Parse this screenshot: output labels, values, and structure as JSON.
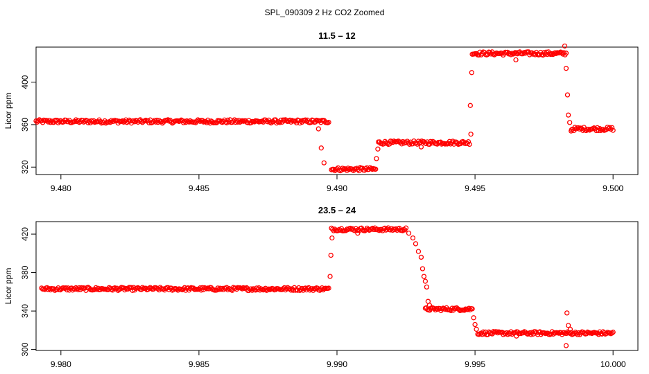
{
  "figure_title": "SPL_090309  2 Hz CO2 Zoomed",
  "chart_data": [
    {
      "type": "scatter",
      "title": "11.5 – 12",
      "xlabel": "",
      "ylabel": "Licor ppm",
      "xlim": [
        9.4791,
        9.5009
      ],
      "ylim": [
        313,
        433
      ],
      "x_ticks": [
        9.48,
        9.485,
        9.49,
        9.495,
        9.5
      ],
      "x_tick_labels": [
        "9.480",
        "9.485",
        "9.490",
        "9.495",
        "9.500"
      ],
      "y_ticks": [
        320,
        360,
        400
      ],
      "y_tick_labels": [
        "320",
        "360",
        "400"
      ],
      "grid": false,
      "marker": "open-circle",
      "color": "#ff0000",
      "segments": [
        {
          "x_start": 9.4791,
          "x_end": 9.4897,
          "y": 363
        },
        {
          "x_start": 9.4898,
          "x_end": 9.4914,
          "y": 318
        },
        {
          "x_start": 9.4915,
          "x_end": 9.4948,
          "y": 343
        },
        {
          "x_start": 9.4949,
          "x_end": 9.4983,
          "y": 427
        },
        {
          "x_start": 9.4985,
          "x_end": 9.5,
          "y": 356
        }
      ],
      "points": [
        {
          "x": 9.48933,
          "y": 356
        },
        {
          "x": 9.48943,
          "y": 338
        },
        {
          "x": 9.48953,
          "y": 324
        },
        {
          "x": 9.49143,
          "y": 328
        },
        {
          "x": 9.49148,
          "y": 337
        },
        {
          "x": 9.49305,
          "y": 339
        },
        {
          "x": 9.49485,
          "y": 351
        },
        {
          "x": 9.49483,
          "y": 378
        },
        {
          "x": 9.49488,
          "y": 409
        },
        {
          "x": 9.49648,
          "y": 421
        },
        {
          "x": 9.49825,
          "y": 434
        },
        {
          "x": 9.4983,
          "y": 413
        },
        {
          "x": 9.49835,
          "y": 388
        },
        {
          "x": 9.49838,
          "y": 369
        },
        {
          "x": 9.49843,
          "y": 362
        },
        {
          "x": 9.49848,
          "y": 354
        }
      ]
    },
    {
      "type": "scatter",
      "title": "23.5 – 24",
      "xlabel": "",
      "ylabel": "Licor ppm",
      "xlim": [
        9.9791,
        10.0009
      ],
      "ylim": [
        299,
        433
      ],
      "x_ticks": [
        9.98,
        9.985,
        9.99,
        9.995,
        10.0
      ],
      "x_tick_labels": [
        "9.980",
        "9.985",
        "9.990",
        "9.995",
        "10.000"
      ],
      "y_ticks": [
        300,
        340,
        380,
        420
      ],
      "y_tick_labels": [
        "300",
        "340",
        "380",
        "420"
      ],
      "grid": false,
      "marker": "open-circle",
      "color": "#ff0000",
      "segments": [
        {
          "x_start": 9.9793,
          "x_end": 9.9897,
          "y": 363
        },
        {
          "x_start": 9.9898,
          "x_end": 9.9925,
          "y": 425
        },
        {
          "x_start": 9.9932,
          "x_end": 9.9949,
          "y": 342
        },
        {
          "x_start": 9.9951,
          "x_end": 10.0,
          "y": 317
        }
      ],
      "points": [
        {
          "x": 9.98975,
          "y": 376
        },
        {
          "x": 9.98978,
          "y": 398
        },
        {
          "x": 9.98982,
          "y": 416
        },
        {
          "x": 9.99075,
          "y": 421
        },
        {
          "x": 9.9926,
          "y": 421
        },
        {
          "x": 9.99275,
          "y": 416
        },
        {
          "x": 9.99285,
          "y": 410
        },
        {
          "x": 9.99295,
          "y": 402
        },
        {
          "x": 9.99305,
          "y": 396
        },
        {
          "x": 9.9931,
          "y": 384
        },
        {
          "x": 9.99315,
          "y": 376
        },
        {
          "x": 9.9932,
          "y": 371
        },
        {
          "x": 9.99325,
          "y": 365
        },
        {
          "x": 9.9933,
          "y": 350
        },
        {
          "x": 9.99335,
          "y": 346
        },
        {
          "x": 9.99495,
          "y": 333
        },
        {
          "x": 9.995,
          "y": 326
        },
        {
          "x": 9.99505,
          "y": 321
        },
        {
          "x": 9.9965,
          "y": 314
        },
        {
          "x": 9.9983,
          "y": 304
        },
        {
          "x": 9.99833,
          "y": 338
        },
        {
          "x": 9.99838,
          "y": 325
        },
        {
          "x": 9.99845,
          "y": 321
        }
      ]
    }
  ]
}
